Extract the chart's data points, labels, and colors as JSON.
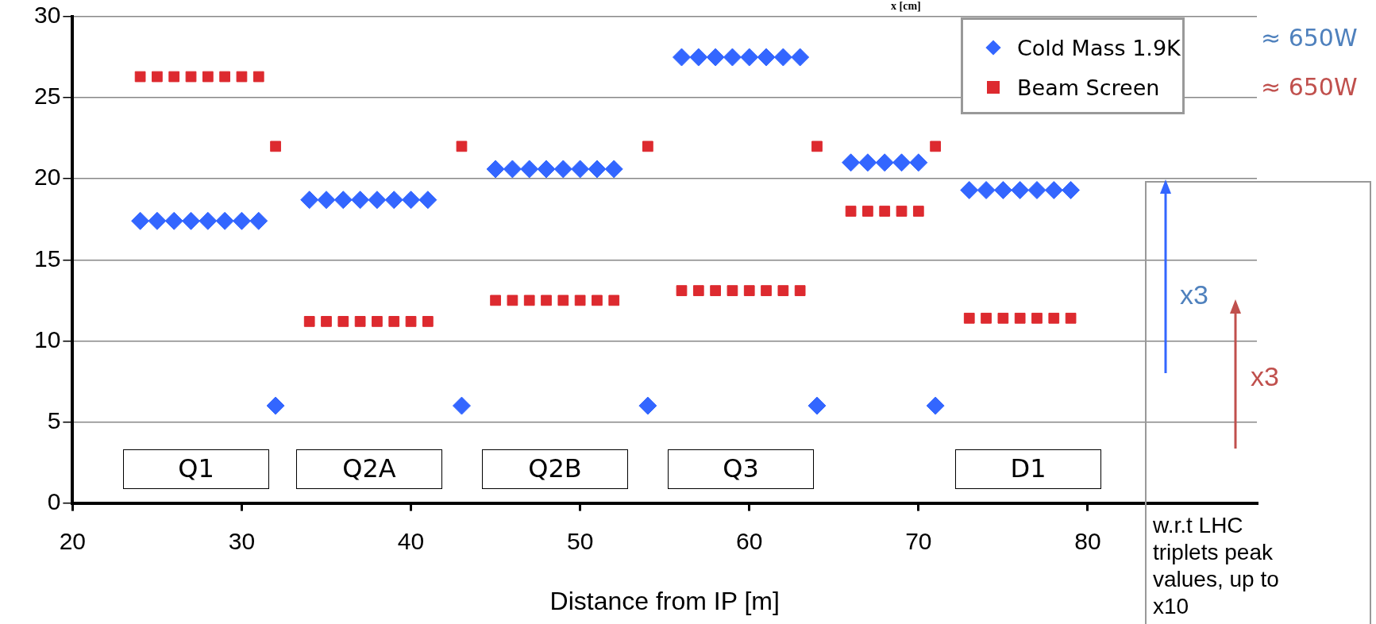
{
  "chart_data": {
    "type": "scatter",
    "xlabel": "Distance from IP [m]",
    "xlim": [
      20,
      90
    ],
    "xticks": [
      20,
      30,
      40,
      50,
      60,
      70,
      80
    ],
    "ylim": [
      0,
      30
    ],
    "yticks": [
      0,
      5,
      10,
      15,
      20,
      25,
      30
    ],
    "grid": "y",
    "legend": "top right",
    "series": [
      {
        "name": "Cold Mass 1.9K",
        "color": "#3366ff",
        "marker": "diamond",
        "x": [
          24,
          25,
          26,
          27,
          28,
          29,
          30,
          31,
          32,
          34,
          35,
          36,
          37,
          38,
          39,
          40,
          41,
          43,
          45,
          46,
          47,
          48,
          49,
          50,
          51,
          52,
          54,
          56,
          57,
          58,
          59,
          60,
          61,
          62,
          63,
          64,
          66,
          67,
          68,
          69,
          70,
          71,
          73,
          74,
          75,
          76,
          77,
          78,
          79
        ],
        "values": [
          17.4,
          17.4,
          17.4,
          17.4,
          17.4,
          17.4,
          17.4,
          17.4,
          6,
          18.7,
          18.7,
          18.7,
          18.7,
          18.7,
          18.7,
          18.7,
          18.7,
          6,
          20.6,
          20.6,
          20.6,
          20.6,
          20.6,
          20.6,
          20.6,
          20.6,
          6,
          27.5,
          27.5,
          27.5,
          27.5,
          27.5,
          27.5,
          27.5,
          27.5,
          6,
          21,
          21,
          21,
          21,
          21,
          6,
          19.3,
          19.3,
          19.3,
          19.3,
          19.3,
          19.3,
          19.3
        ]
      },
      {
        "name": "Beam Screen",
        "color": "#dd2a2f",
        "marker": "square",
        "x": [
          24,
          25,
          26,
          27,
          28,
          29,
          30,
          31,
          32,
          34,
          35,
          36,
          37,
          38,
          39,
          40,
          41,
          43,
          45,
          46,
          47,
          48,
          49,
          50,
          51,
          52,
          54,
          56,
          57,
          58,
          59,
          60,
          61,
          62,
          63,
          64,
          66,
          67,
          68,
          69,
          70,
          71,
          73,
          74,
          75,
          76,
          77,
          78,
          79
        ],
        "values": [
          26.3,
          26.3,
          26.3,
          26.3,
          26.3,
          26.3,
          26.3,
          26.3,
          22,
          11.2,
          11.2,
          11.2,
          11.2,
          11.2,
          11.2,
          11.2,
          11.2,
          22,
          12.5,
          12.5,
          12.5,
          12.5,
          12.5,
          12.5,
          12.5,
          12.5,
          22,
          13.1,
          13.1,
          13.1,
          13.1,
          13.1,
          13.1,
          13.1,
          13.1,
          22,
          18,
          18,
          18,
          18,
          18,
          22,
          11.4,
          11.4,
          11.4,
          11.4,
          11.4,
          11.4,
          11.4
        ]
      }
    ],
    "annotations": [
      "x [cm]",
      "≈ 650W",
      "≈ 650W",
      "x3",
      "x3",
      "w.r.t LHC triplets peak values, up to x10",
      "Q1",
      "Q2A",
      "Q2B",
      "Q3",
      "D1"
    ]
  }
}
